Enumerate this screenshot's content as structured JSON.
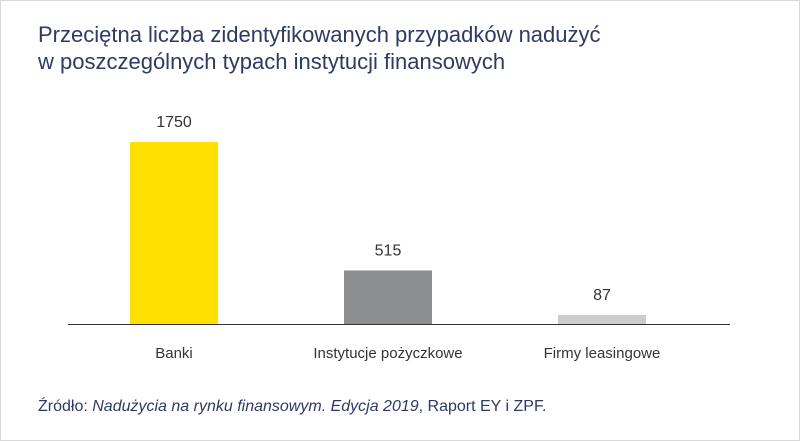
{
  "title_lines": [
    "Przeciętna liczba zidentyfikowanych przypadków nadużyć",
    "w poszczególnych typach instytucji finansowych"
  ],
  "source": {
    "prefix": "Źródło: ",
    "italic": "Nadużycia na rynku finansowym. Edycja 2019",
    "suffix": ", Raport EY i ZPF."
  },
  "chart_data": {
    "type": "bar",
    "categories": [
      "Banki",
      "Instytucje pożyczkowe",
      "Firmy leasingowe"
    ],
    "values": [
      1750,
      515,
      87
    ],
    "colors": [
      "#ffe000",
      "#8c8e90",
      "#cccccc"
    ],
    "data_labels": [
      "1750",
      "515",
      "87"
    ],
    "ylim": [
      0,
      1750
    ],
    "grid": false,
    "axis_color": "#333333",
    "label_color": "#333333"
  }
}
